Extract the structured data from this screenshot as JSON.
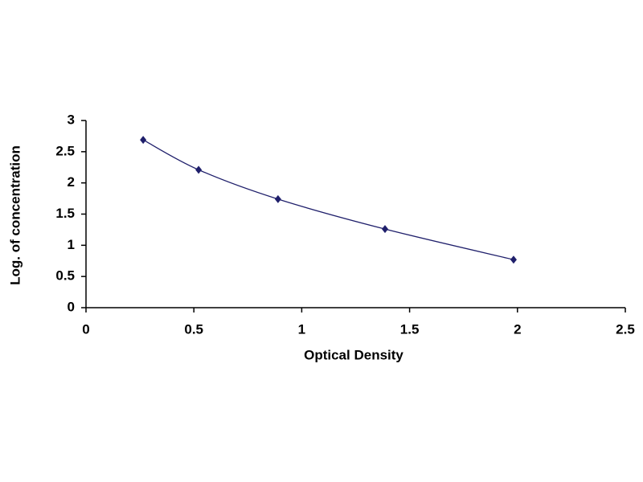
{
  "chart_data": {
    "type": "scatter",
    "x_label": "Optical Density",
    "y_label": "Log. of concentration",
    "series": [
      {
        "x": [
          0.265,
          0.522,
          0.89,
          1.386,
          1.982
        ],
        "values": [
          2.69,
          2.21,
          1.74,
          1.26,
          0.77
        ],
        "color": "#1f1f6b"
      }
    ],
    "xlim": [
      0,
      2.5
    ],
    "xticks": [
      0,
      0.5,
      1,
      1.5,
      2,
      2.5
    ],
    "ylim": [
      0,
      3
    ],
    "yticks": [
      0,
      0.5,
      1,
      1.5,
      2,
      2.5,
      3
    ],
    "smooth_line": true,
    "grid": false
  }
}
